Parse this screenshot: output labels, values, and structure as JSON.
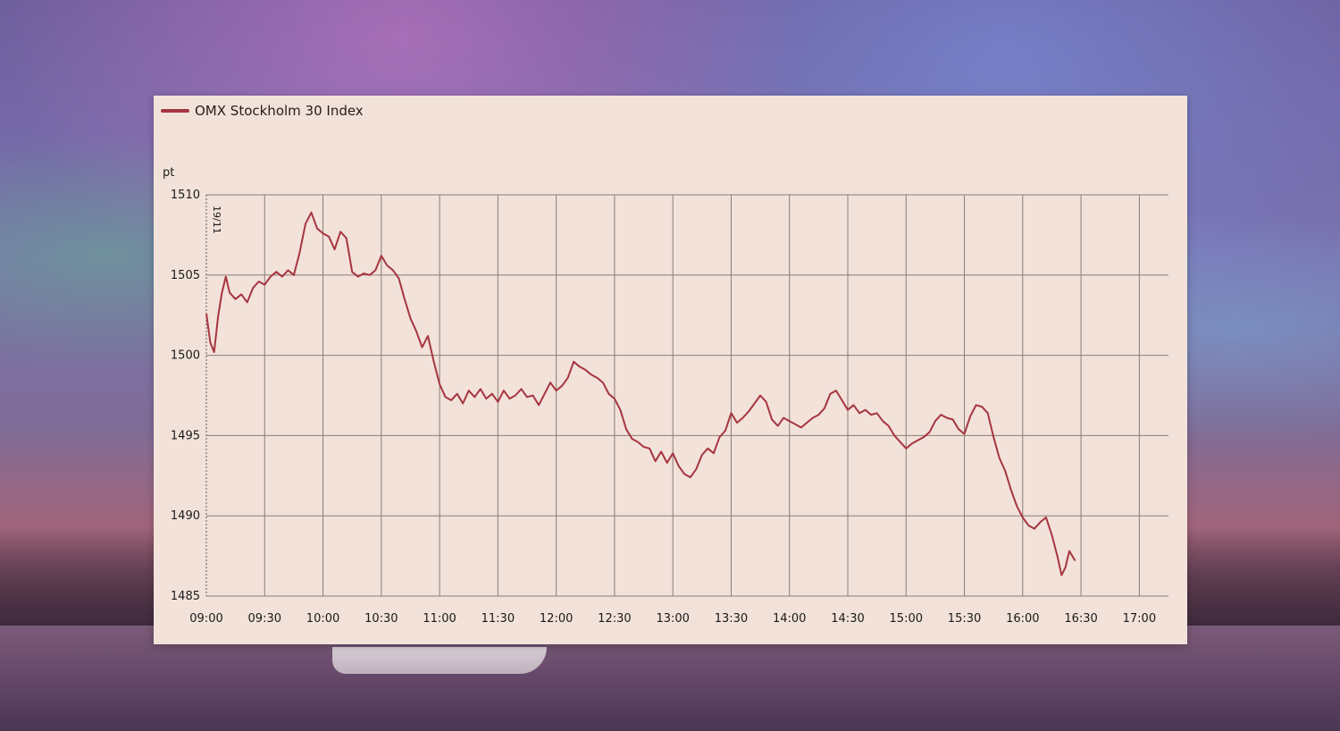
{
  "chart_data": {
    "type": "line",
    "title": "",
    "ylabel": "pt",
    "xlabel": "",
    "date_marker": "19/11",
    "ylim": [
      1485,
      1510
    ],
    "yticks": [
      1485,
      1490,
      1495,
      1500,
      1505,
      1510
    ],
    "xticks": [
      "09:00",
      "09:30",
      "10:00",
      "10:30",
      "11:00",
      "11:30",
      "12:00",
      "12:30",
      "13:00",
      "13:30",
      "14:00",
      "14:30",
      "15:00",
      "15:30",
      "16:00",
      "16:30",
      "17:00"
    ],
    "xlim": [
      "09:00",
      "17:15"
    ],
    "grid": true,
    "legend": "top-left",
    "series": [
      {
        "name": "OMX Stockholm 30 Index",
        "color": "#a6353f",
        "points": [
          [
            "09:00",
            1502.6
          ],
          [
            "09:02",
            1500.8
          ],
          [
            "09:04",
            1500.2
          ],
          [
            "09:06",
            1502.4
          ],
          [
            "09:08",
            1503.9
          ],
          [
            "09:10",
            1504.9
          ],
          [
            "09:12",
            1503.9
          ],
          [
            "09:15",
            1503.5
          ],
          [
            "09:18",
            1503.8
          ],
          [
            "09:21",
            1503.3
          ],
          [
            "09:24",
            1504.2
          ],
          [
            "09:27",
            1504.6
          ],
          [
            "09:30",
            1504.4
          ],
          [
            "09:33",
            1504.9
          ],
          [
            "09:36",
            1505.2
          ],
          [
            "09:39",
            1504.9
          ],
          [
            "09:42",
            1505.3
          ],
          [
            "09:45",
            1505.0
          ],
          [
            "09:48",
            1506.4
          ],
          [
            "09:51",
            1508.2
          ],
          [
            "09:54",
            1508.9
          ],
          [
            "09:57",
            1507.9
          ],
          [
            "10:00",
            1507.6
          ],
          [
            "10:03",
            1507.4
          ],
          [
            "10:06",
            1506.6
          ],
          [
            "10:09",
            1507.7
          ],
          [
            "10:12",
            1507.3
          ],
          [
            "10:15",
            1505.2
          ],
          [
            "10:18",
            1504.9
          ],
          [
            "10:21",
            1505.1
          ],
          [
            "10:24",
            1505.0
          ],
          [
            "10:27",
            1505.3
          ],
          [
            "10:30",
            1506.2
          ],
          [
            "10:33",
            1505.6
          ],
          [
            "10:36",
            1505.3
          ],
          [
            "10:39",
            1504.8
          ],
          [
            "10:42",
            1503.5
          ],
          [
            "10:45",
            1502.3
          ],
          [
            "10:48",
            1501.5
          ],
          [
            "10:51",
            1500.5
          ],
          [
            "10:54",
            1501.2
          ],
          [
            "10:57",
            1499.6
          ],
          [
            "11:00",
            1498.2
          ],
          [
            "11:03",
            1497.4
          ],
          [
            "11:06",
            1497.2
          ],
          [
            "11:09",
            1497.6
          ],
          [
            "11:12",
            1497.0
          ],
          [
            "11:15",
            1497.8
          ],
          [
            "11:18",
            1497.4
          ],
          [
            "11:21",
            1497.9
          ],
          [
            "11:24",
            1497.3
          ],
          [
            "11:27",
            1497.6
          ],
          [
            "11:30",
            1497.1
          ],
          [
            "11:33",
            1497.8
          ],
          [
            "11:36",
            1497.3
          ],
          [
            "11:39",
            1497.5
          ],
          [
            "11:42",
            1497.9
          ],
          [
            "11:45",
            1497.4
          ],
          [
            "11:48",
            1497.5
          ],
          [
            "11:51",
            1496.9
          ],
          [
            "11:54",
            1497.6
          ],
          [
            "11:57",
            1498.3
          ],
          [
            "12:00",
            1497.8
          ],
          [
            "12:03",
            1498.1
          ],
          [
            "12:06",
            1498.6
          ],
          [
            "12:09",
            1499.6
          ],
          [
            "12:12",
            1499.3
          ],
          [
            "12:15",
            1499.1
          ],
          [
            "12:18",
            1498.8
          ],
          [
            "12:21",
            1498.6
          ],
          [
            "12:24",
            1498.3
          ],
          [
            "12:27",
            1497.6
          ],
          [
            "12:30",
            1497.3
          ],
          [
            "12:33",
            1496.6
          ],
          [
            "12:36",
            1495.4
          ],
          [
            "12:39",
            1494.8
          ],
          [
            "12:42",
            1494.6
          ],
          [
            "12:45",
            1494.3
          ],
          [
            "12:48",
            1494.2
          ],
          [
            "12:51",
            1493.4
          ],
          [
            "12:54",
            1494.0
          ],
          [
            "12:57",
            1493.3
          ],
          [
            "13:00",
            1493.9
          ],
          [
            "13:03",
            1493.1
          ],
          [
            "13:06",
            1492.6
          ],
          [
            "13:09",
            1492.4
          ],
          [
            "13:12",
            1492.9
          ],
          [
            "13:15",
            1493.8
          ],
          [
            "13:18",
            1494.2
          ],
          [
            "13:21",
            1493.9
          ],
          [
            "13:24",
            1494.9
          ],
          [
            "13:27",
            1495.3
          ],
          [
            "13:30",
            1496.4
          ],
          [
            "13:33",
            1495.8
          ],
          [
            "13:36",
            1496.1
          ],
          [
            "13:39",
            1496.5
          ],
          [
            "13:42",
            1497.0
          ],
          [
            "13:45",
            1497.5
          ],
          [
            "13:48",
            1497.1
          ],
          [
            "13:51",
            1496.0
          ],
          [
            "13:54",
            1495.6
          ],
          [
            "13:57",
            1496.1
          ],
          [
            "14:00",
            1495.9
          ],
          [
            "14:03",
            1495.7
          ],
          [
            "14:06",
            1495.5
          ],
          [
            "14:09",
            1495.8
          ],
          [
            "14:12",
            1496.1
          ],
          [
            "14:15",
            1496.3
          ],
          [
            "14:18",
            1496.7
          ],
          [
            "14:21",
            1497.6
          ],
          [
            "14:24",
            1497.8
          ],
          [
            "14:27",
            1497.2
          ],
          [
            "14:30",
            1496.6
          ],
          [
            "14:33",
            1496.9
          ],
          [
            "14:36",
            1496.4
          ],
          [
            "14:39",
            1496.6
          ],
          [
            "14:42",
            1496.3
          ],
          [
            "14:45",
            1496.4
          ],
          [
            "14:48",
            1495.9
          ],
          [
            "14:51",
            1495.6
          ],
          [
            "14:54",
            1495.0
          ],
          [
            "14:57",
            1494.6
          ],
          [
            "15:00",
            1494.2
          ],
          [
            "15:03",
            1494.5
          ],
          [
            "15:06",
            1494.7
          ],
          [
            "15:09",
            1494.9
          ],
          [
            "15:12",
            1495.2
          ],
          [
            "15:15",
            1495.9
          ],
          [
            "15:18",
            1496.3
          ],
          [
            "15:21",
            1496.1
          ],
          [
            "15:24",
            1496.0
          ],
          [
            "15:27",
            1495.4
          ],
          [
            "15:30",
            1495.1
          ],
          [
            "15:33",
            1496.2
          ],
          [
            "15:36",
            1496.9
          ],
          [
            "15:39",
            1496.8
          ],
          [
            "15:42",
            1496.4
          ],
          [
            "15:45",
            1494.9
          ],
          [
            "15:48",
            1493.6
          ],
          [
            "15:51",
            1492.8
          ],
          [
            "15:54",
            1491.6
          ],
          [
            "15:57",
            1490.6
          ],
          [
            "16:00",
            1489.9
          ],
          [
            "16:03",
            1489.4
          ],
          [
            "16:06",
            1489.2
          ],
          [
            "16:09",
            1489.6
          ],
          [
            "16:12",
            1489.9
          ],
          [
            "16:15",
            1488.8
          ],
          [
            "16:18",
            1487.4
          ],
          [
            "16:20",
            1486.3
          ],
          [
            "16:22",
            1486.8
          ],
          [
            "16:24",
            1487.8
          ],
          [
            "16:27",
            1487.2
          ]
        ]
      }
    ]
  }
}
